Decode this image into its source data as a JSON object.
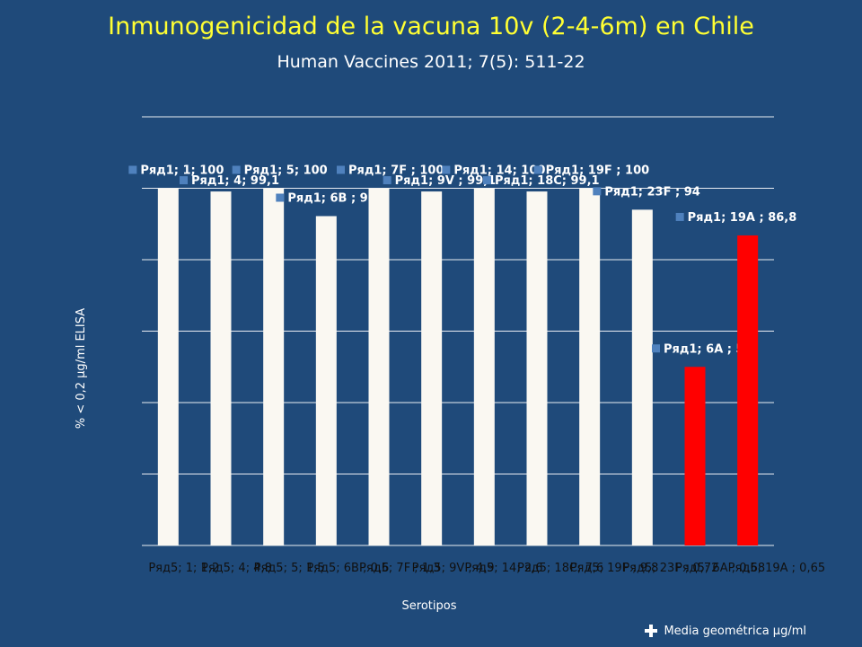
{
  "title": "Inmunogenicidad de la vacuna 10v (2-4-6m) en Chile",
  "subtitle": "Human Vaccines 2011; 7(5): 511-22",
  "footer_note": "Media geométrica µg/ml",
  "colors": {
    "background": "#1F4A7A",
    "title": "#FFFF33",
    "bar_vaccine": "#FAF8F2",
    "bar_other": "#FF0000",
    "label_marker": "#4F81BD",
    "grid": "#FFFFFF"
  },
  "chart_data": {
    "type": "bar",
    "xlabel": "Serotipos",
    "ylabel": "% < 0,2 µg/ml ELISA",
    "ylim": [
      0,
      120
    ],
    "grid": true,
    "categories": [
      "1",
      "4",
      "5",
      "6B",
      "7F",
      "9V",
      "14",
      "18C",
      "19F",
      "23F",
      "6A",
      "19A"
    ],
    "series": [
      {
        "name": "Ряд1",
        "values": [
          100,
          99.1,
          100,
          92.2,
          100,
          99.1,
          100,
          99.1,
          100,
          94,
          50,
          86.8
        ],
        "data_labels": [
          "Ряд1; 1; 100",
          "Ряд1; 4; 99,1",
          "Ряд1; 5; 100",
          "Ряд1; 6B ; 92,2",
          "Ряд1; 7F ; 100",
          "Ряд1; 9V ; 99,1",
          "Ряд1; 14; 100",
          "Ряд1; 18C; 99,1",
          "Ряд1; 19F ; 100",
          "Ряд1; 23F ; 94",
          "Ряд1; 6A ; 50",
          "Ряд1; 19A ; 86,8"
        ],
        "bar_colors": [
          "#FAF8F2",
          "#FAF8F2",
          "#FAF8F2",
          "#FAF8F2",
          "#FAF8F2",
          "#FAF8F2",
          "#FAF8F2",
          "#FAF8F2",
          "#FAF8F2",
          "#FAF8F2",
          "#FF0000",
          "#FF0000"
        ]
      },
      {
        "name": "Ряд5",
        "values": [
          1.2,
          4.8,
          1.5,
          0.6,
          1.3,
          4.9,
          2.6,
          7.6,
          9.8,
          0.72,
          0.68,
          0.65
        ],
        "data_labels": [
          "Ряд5; 1; 1,2",
          "Ряд5; 4; 4,8",
          "Ряд5; 5; 1,5",
          "Ряд5; 6B ; 0,6",
          "Ряд5; 7F ; 1,3",
          "Ряд5; 9V ; 4,9",
          "Ряд5; 14; 2,6",
          "Ряд5; 18C; 7,6",
          "Ряд5; 19F ; 9,8",
          "Ряд5; 23F ; 0,72",
          "Ряд5; 6A ; 0,68",
          "Ряд5; 19A ; 0,65"
        ]
      }
    ]
  }
}
